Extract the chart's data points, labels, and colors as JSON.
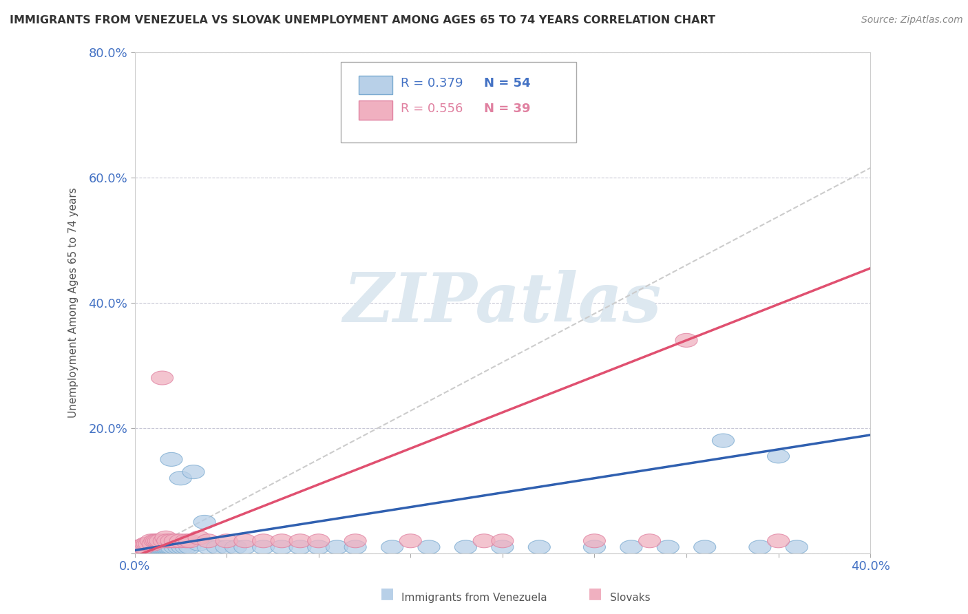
{
  "title": "IMMIGRANTS FROM VENEZUELA VS SLOVAK UNEMPLOYMENT AMONG AGES 65 TO 74 YEARS CORRELATION CHART",
  "source": "Source: ZipAtlas.com",
  "ylabel": "Unemployment Among Ages 65 to 74 years",
  "xlim": [
    0.0,
    0.4
  ],
  "ylim": [
    0.0,
    0.8
  ],
  "xticks": [
    0.0,
    0.05,
    0.1,
    0.15,
    0.2,
    0.25,
    0.3,
    0.35,
    0.4
  ],
  "yticks": [
    0.0,
    0.2,
    0.4,
    0.6,
    0.8
  ],
  "blue_fill": "#b8d0e8",
  "blue_edge": "#7aaad0",
  "pink_fill": "#f0b0c0",
  "pink_edge": "#e080a0",
  "blue_line_color": "#3060b0",
  "pink_line_color": "#e05070",
  "dash_line_color": "#cccccc",
  "axis_label_color": "#4472c4",
  "title_color": "#333333",
  "source_color": "#888888",
  "ylabel_color": "#555555",
  "watermark_color": "#dde8f0",
  "legend_R1": "R = 0.379",
  "legend_N1": "N = 54",
  "legend_R2": "R = 0.556",
  "legend_N2": "N = 39",
  "blue_trend_slope": 0.46,
  "blue_trend_intercept": 0.005,
  "pink_trend_slope": 1.15,
  "pink_trend_intercept": -0.005,
  "dash_trend_slope": 1.55,
  "dash_trend_intercept": -0.005,
  "blue_scatter_x": [
    0.001,
    0.002,
    0.003,
    0.004,
    0.005,
    0.006,
    0.007,
    0.008,
    0.009,
    0.01,
    0.011,
    0.012,
    0.013,
    0.014,
    0.015,
    0.016,
    0.017,
    0.018,
    0.019,
    0.02,
    0.022,
    0.024,
    0.026,
    0.028,
    0.03,
    0.035,
    0.04,
    0.045,
    0.05,
    0.055,
    0.06,
    0.07,
    0.08,
    0.09,
    0.1,
    0.11,
    0.12,
    0.14,
    0.16,
    0.18,
    0.2,
    0.22,
    0.25,
    0.27,
    0.29,
    0.31,
    0.32,
    0.34,
    0.35,
    0.36,
    0.02,
    0.025,
    0.032,
    0.038
  ],
  "blue_scatter_y": [
    0.01,
    0.008,
    0.01,
    0.01,
    0.012,
    0.01,
    0.01,
    0.01,
    0.01,
    0.01,
    0.01,
    0.01,
    0.01,
    0.01,
    0.01,
    0.01,
    0.01,
    0.01,
    0.01,
    0.01,
    0.01,
    0.01,
    0.01,
    0.01,
    0.01,
    0.015,
    0.01,
    0.01,
    0.01,
    0.01,
    0.01,
    0.01,
    0.01,
    0.01,
    0.01,
    0.01,
    0.01,
    0.01,
    0.01,
    0.01,
    0.01,
    0.01,
    0.01,
    0.01,
    0.01,
    0.01,
    0.18,
    0.01,
    0.155,
    0.01,
    0.15,
    0.12,
    0.13,
    0.05
  ],
  "pink_scatter_x": [
    0.001,
    0.002,
    0.003,
    0.004,
    0.005,
    0.006,
    0.007,
    0.008,
    0.009,
    0.01,
    0.011,
    0.012,
    0.013,
    0.014,
    0.015,
    0.016,
    0.017,
    0.018,
    0.02,
    0.022,
    0.025,
    0.028,
    0.03,
    0.035,
    0.04,
    0.05,
    0.06,
    0.07,
    0.08,
    0.09,
    0.1,
    0.12,
    0.15,
    0.19,
    0.2,
    0.25,
    0.28,
    0.3,
    0.35
  ],
  "pink_scatter_y": [
    0.01,
    0.01,
    0.01,
    0.012,
    0.01,
    0.015,
    0.015,
    0.015,
    0.02,
    0.015,
    0.02,
    0.02,
    0.02,
    0.02,
    0.28,
    0.02,
    0.025,
    0.02,
    0.02,
    0.02,
    0.02,
    0.02,
    0.02,
    0.025,
    0.02,
    0.02,
    0.02,
    0.02,
    0.02,
    0.02,
    0.02,
    0.02,
    0.02,
    0.02,
    0.02,
    0.02,
    0.02,
    0.34,
    0.02
  ]
}
